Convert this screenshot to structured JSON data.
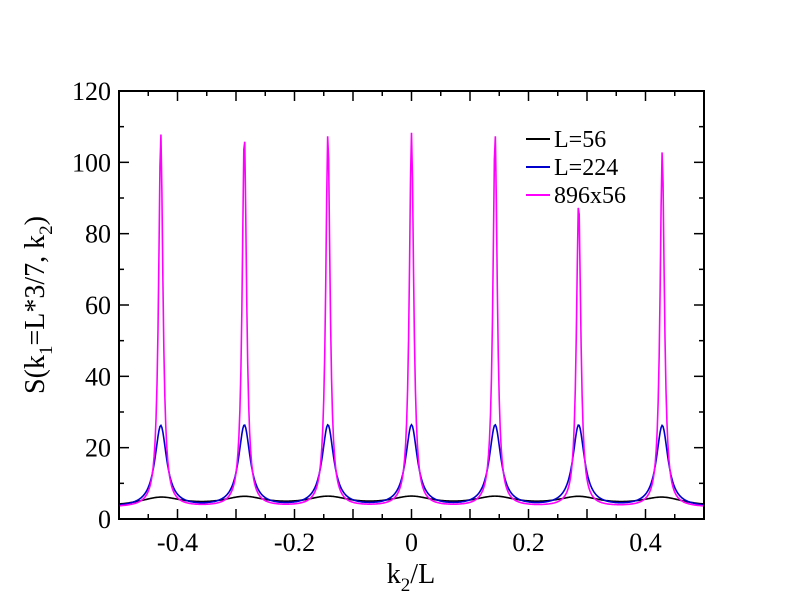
{
  "chart_data": {
    "type": "line",
    "xlabel": {
      "main": "k",
      "sub": "2",
      "rest": "/L"
    },
    "ylabel": {
      "p1": "S(k",
      "s1": "1",
      "p2": "=L*3/7, k",
      "s2": "2",
      "p3": ")"
    },
    "xlim": [
      -0.5,
      0.5
    ],
    "ylim": [
      0,
      120
    ],
    "x_ticks": [
      -0.4,
      -0.2,
      0,
      0.2,
      0.4
    ],
    "x_tick_labels": [
      "-0.4",
      "-0.2",
      "0",
      "0.2",
      "0.4"
    ],
    "y_ticks": [
      0,
      20,
      40,
      60,
      80,
      100,
      120
    ],
    "y_tick_labels": [
      "0",
      "20",
      "40",
      "60",
      "80",
      "100",
      "120"
    ],
    "legend_position": "top-right",
    "peak_positions": [
      -0.4286,
      -0.2857,
      -0.1429,
      0.0,
      0.1429,
      0.2857,
      0.4286
    ],
    "series": [
      {
        "name": "L=56",
        "color": "#000000",
        "baseline": 3.3,
        "peak_heights": [
          5.8,
          5.8,
          5.8,
          5.8,
          5.8,
          5.8,
          5.8
        ],
        "half_width": 0.045
      },
      {
        "name": "L=224",
        "color": "#0000cc",
        "baseline": 3.2,
        "peak_heights": [
          26,
          26,
          26,
          26,
          26,
          26,
          26
        ],
        "half_width": 0.012
      },
      {
        "name": "896x56",
        "color": "#ff00ff",
        "baseline": 3.2,
        "peak_heights": [
          108,
          108,
          108,
          108,
          108,
          89,
          103
        ],
        "half_width": 0.0045
      }
    ]
  }
}
